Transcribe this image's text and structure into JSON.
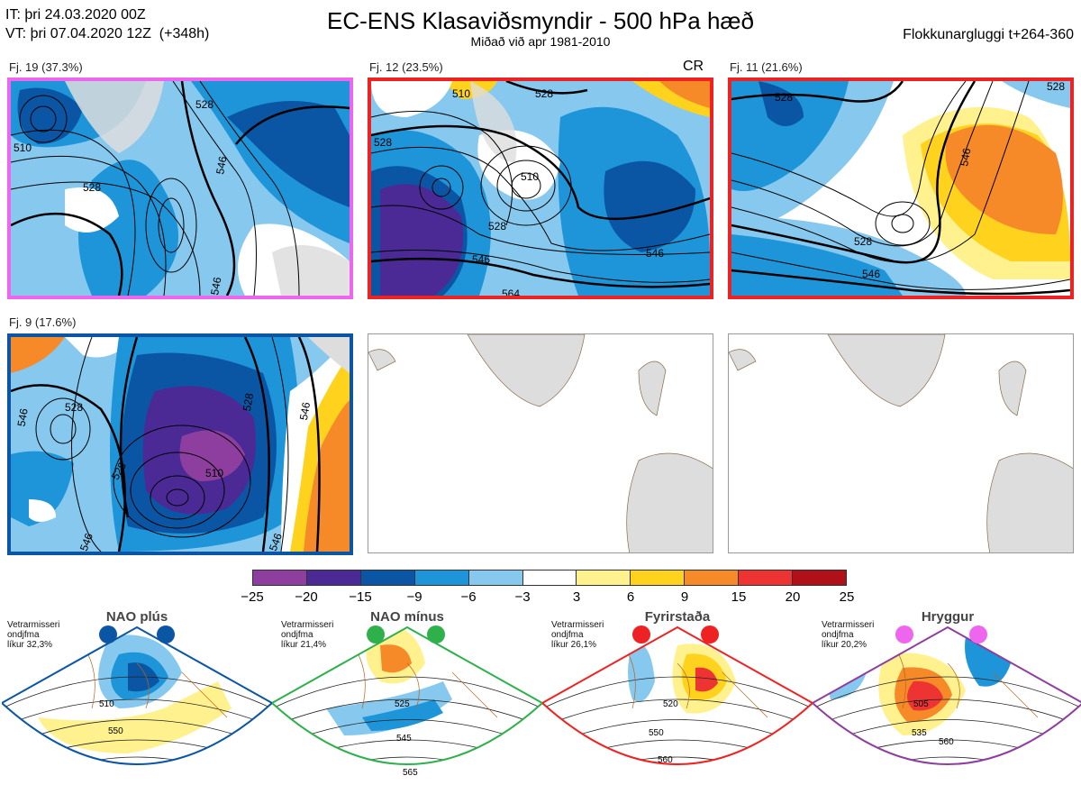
{
  "header": {
    "line1": "IT: þri 24.03.2020 00Z",
    "line2": "VT: þri 07.04.2020 12Z  (+348h)",
    "title": "EC-ENS Klasaviðsmyndir - 500 hPa hæð",
    "subtitle": "Miðað við apr 1981-2010",
    "right": "Flokkunargluggi t+264-360"
  },
  "panels": [
    {
      "label": "Fj. 19 (37.3%)",
      "border": "#ee66ee",
      "tag": "",
      "contours": [
        "510",
        "528",
        "546",
        "528",
        "546"
      ]
    },
    {
      "label": "Fj. 12 (23.5%)",
      "border": "#ee2222",
      "tag": "CR",
      "contours": [
        "510",
        "528",
        "528",
        "510",
        "528",
        "546",
        "546",
        "564"
      ]
    },
    {
      "label": "Fj. 11 (21.6%)",
      "border": "#ee2222",
      "tag": "",
      "contours": [
        "528",
        "528",
        "546",
        "528",
        "546"
      ]
    },
    {
      "label": "Fj. 9 (17.6%)",
      "border": "#0b56a4",
      "tag": "",
      "contours": [
        "546",
        "528",
        "528",
        "546",
        "510",
        "528",
        "546",
        "546"
      ]
    }
  ],
  "chart_data": {
    "type": "heatmap",
    "colorbar": {
      "ticks": [
        "−25",
        "−20",
        "−15",
        "−9",
        "−6",
        "−3",
        "3",
        "6",
        "9",
        "15",
        "20",
        "25"
      ],
      "colors": [
        "#8e3e9e",
        "#4b2a96",
        "#0b56a4",
        "#1e95d8",
        "#86c8ee",
        "#ffffff",
        "#fff18e",
        "#ffd21e",
        "#f68a28",
        "#ee3333",
        "#b0101a"
      ]
    },
    "regimes": [
      {
        "name": "NAO plús",
        "dot_color": "#0b56a4",
        "note1": "Vetrarmisseri",
        "note2": "ondjfma",
        "note3": "líkur 32,3%",
        "border": "#0b56a4",
        "contours": [
          "510",
          "550"
        ]
      },
      {
        "name": "NAO mínus",
        "dot_color": "#2eb04a",
        "note1": "Vetrarmisseri",
        "note2": "ondjfma",
        "note3": "líkur 21,4%",
        "border": "#2eb04a",
        "contours": [
          "525",
          "545",
          "565"
        ]
      },
      {
        "name": "Fyrirstaða",
        "dot_color": "#ee2222",
        "note1": "Vetrarmisseri",
        "note2": "ondjfma",
        "note3": "líkur 26,1%",
        "border": "#ee2222",
        "contours": [
          "520",
          "550",
          "560"
        ]
      },
      {
        "name": "Hryggur",
        "dot_color": "#ee66ee",
        "note1": "Vetrarmisseri",
        "note2": "ondjfma",
        "note3": "líkur 20,2%",
        "border": "#8e3e9e",
        "contours": [
          "505",
          "535",
          "560"
        ]
      }
    ]
  }
}
